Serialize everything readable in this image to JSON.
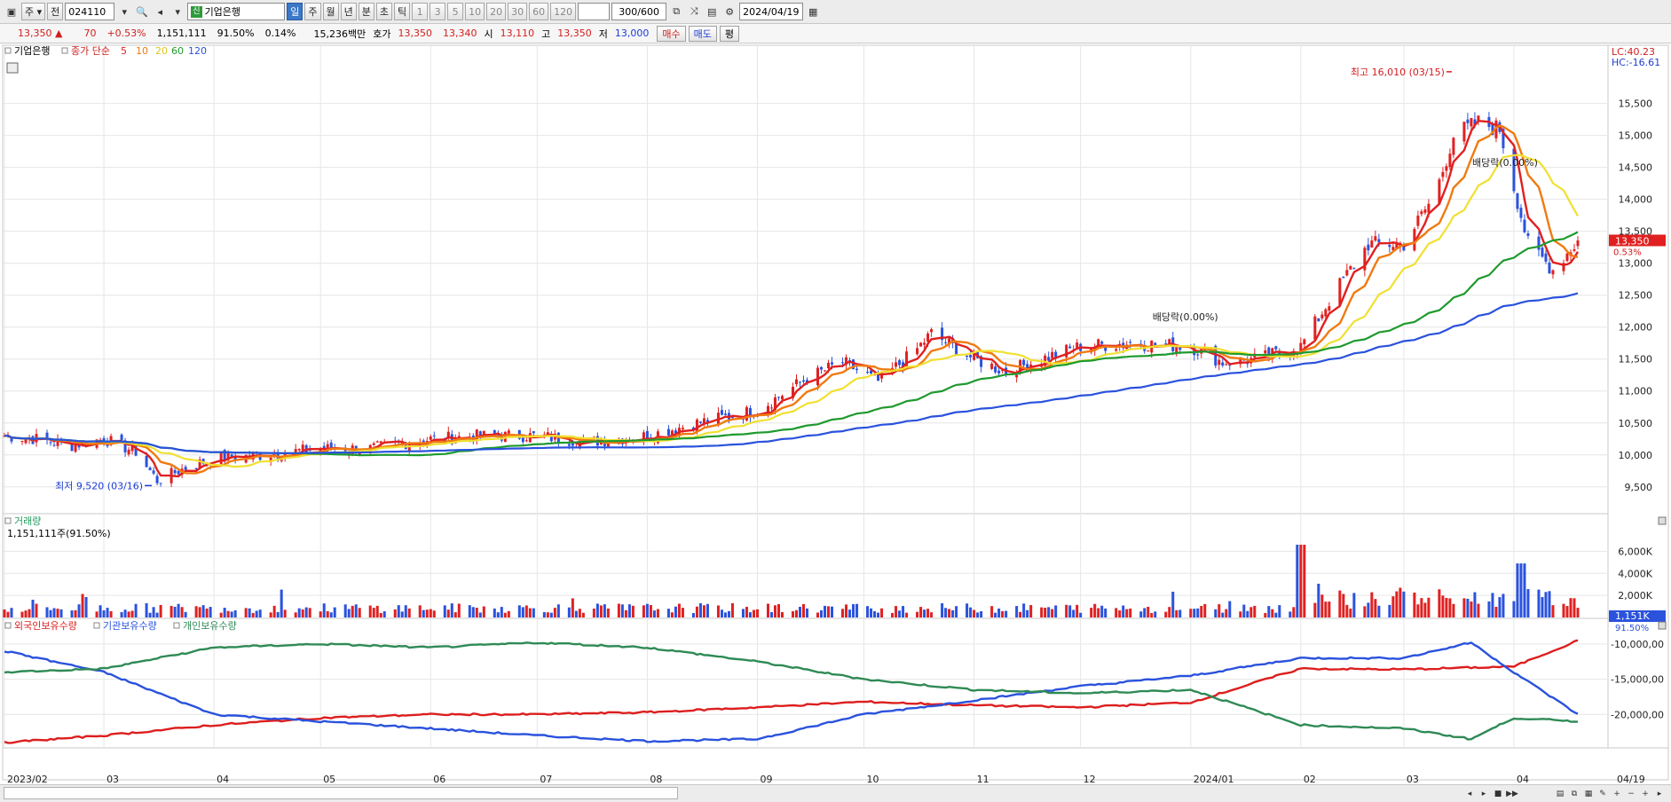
{
  "toolbar": {
    "period_label": "주",
    "mode_label": "전",
    "code": "024110",
    "stock_name": "기업은행",
    "stock_badge": "신",
    "periods": [
      "일",
      "주",
      "월",
      "년",
      "분",
      "초",
      "틱"
    ],
    "active_period": "일",
    "intervals": [
      "1",
      "3",
      "5",
      "10",
      "20",
      "30",
      "60",
      "120"
    ],
    "count": "300/600",
    "date": "2024/04/19"
  },
  "quote": {
    "price": "13,350 ▲",
    "change": "70",
    "change_pct": "+0.53%",
    "volume": "1,151,111",
    "vol_ratio": "91.50%",
    "turnover": "0.14%",
    "amount": "15,236백만",
    "ask_label": "호가",
    "ask1": "13,350",
    "ask2": "13,340",
    "open_label": "시",
    "open": "13,110",
    "high_label": "고",
    "high": "13,350",
    "low_label": "저",
    "low": "13,000",
    "buy_label": "매수",
    "sell_label": "매도",
    "eval_label": "평"
  },
  "chart_data": {
    "type": "candlestick",
    "price_panel": {
      "legend": {
        "name": "기업은행",
        "ma_label": "종가 단순",
        "ma_periods": [
          "5",
          "10",
          "20",
          "60",
          "120"
        ]
      },
      "ma_colors": [
        "#e02020",
        "#f07a10",
        "#f0e030",
        "#1f9a2e",
        "#2a52dd"
      ],
      "y_ticks": [
        9500,
        10000,
        10500,
        11000,
        11500,
        12000,
        12500,
        13000,
        13500,
        14000,
        14500,
        15000,
        15500
      ],
      "y_range": [
        9150,
        16300
      ],
      "price_labels": {
        "LC": "LC:40.23",
        "HC": "HC:-16.61",
        "current": "13,350",
        "current_pct": "0.53%"
      },
      "annotations": [
        {
          "text": "최고 16,010 (03/15)",
          "value": 16010,
          "date": "2024/03/15"
        },
        {
          "text": "최저 9,520 (03/16)",
          "value": 9520,
          "date": "2023/03/16"
        },
        {
          "text": "배당락(0.00%)",
          "date": "2023/12/28"
        },
        {
          "text": "배당락(0.00%)",
          "date": "2024/04/02"
        }
      ],
      "close_keypoints": [
        [
          "2023/02/01",
          10300
        ],
        [
          "2023/02/10",
          10250
        ],
        [
          "2023/02/20",
          10150
        ],
        [
          "2023/03/01",
          10250
        ],
        [
          "2023/03/10",
          10050
        ],
        [
          "2023/03/16",
          9600
        ],
        [
          "2023/03/24",
          9800
        ],
        [
          "2023/04/01",
          9950
        ],
        [
          "2023/04/15",
          10000
        ],
        [
          "2023/05/01",
          10100
        ],
        [
          "2023/05/15",
          10100
        ],
        [
          "2023/06/01",
          10250
        ],
        [
          "2023/06/15",
          10300
        ],
        [
          "2023/07/01",
          10300
        ],
        [
          "2023/07/15",
          10200
        ],
        [
          "2023/08/01",
          10300
        ],
        [
          "2023/08/15",
          10500
        ],
        [
          "2023/09/01",
          10700
        ],
        [
          "2023/09/15",
          11200
        ],
        [
          "2023/09/25",
          11450
        ],
        [
          "2023/10/05",
          11150
        ],
        [
          "2023/10/15",
          11600
        ],
        [
          "2023/10/20",
          11900
        ],
        [
          "2023/11/01",
          11500
        ],
        [
          "2023/11/10",
          11300
        ],
        [
          "2023/11/20",
          11500
        ],
        [
          "2023/12/01",
          11700
        ],
        [
          "2023/12/15",
          11750
        ],
        [
          "2024/01/01",
          11700
        ],
        [
          "2024/01/10",
          11450
        ],
        [
          "2024/01/20",
          11500
        ],
        [
          "2024/02/01",
          11700
        ],
        [
          "2024/02/10",
          12500
        ],
        [
          "2024/02/20",
          13300
        ],
        [
          "2024/03/01",
          13300
        ],
        [
          "2024/03/10",
          14100
        ],
        [
          "2024/03/15",
          15000
        ],
        [
          "2024/03/22",
          15200
        ],
        [
          "2024/03/28",
          15100
        ],
        [
          "2024/04/05",
          13300
        ],
        [
          "2024/04/12",
          12900
        ],
        [
          "2024/04/19",
          13350
        ]
      ]
    },
    "volume_panel": {
      "title": "거래량",
      "subtitle": "1,151,111주(91.50%)",
      "y_ticks": [
        "2,000K",
        "4,000K",
        "6,000K"
      ],
      "y_range": [
        0,
        7000
      ],
      "current_label": "1,151K",
      "current_pct": "91.50%",
      "note": "volume in thousands of shares"
    },
    "holdings_panel": {
      "series_names": [
        "외국인보유수량",
        "기관보유수량",
        "개인보유수량"
      ],
      "series_colors": [
        "#dd1e1e",
        "#2a52dd",
        "#2f8a55"
      ],
      "y_ticks": [
        "-10,000,00",
        "-15,000,00",
        "-20,000,00"
      ],
      "y_range": [
        -24500,
        -8500
      ],
      "foreign_keypoints": [
        [
          "2023/02/01",
          -24000
        ],
        [
          "2023/03/01",
          -23000
        ],
        [
          "2023/04/01",
          -21500
        ],
        [
          "2023/05/01",
          -20500
        ],
        [
          "2023/06/01",
          -20000
        ],
        [
          "2023/07/01",
          -20000
        ],
        [
          "2023/08/01",
          -19700
        ],
        [
          "2023/09/01",
          -19000
        ],
        [
          "2023/10/01",
          -18200
        ],
        [
          "2023/11/01",
          -18700
        ],
        [
          "2023/12/01",
          -19000
        ],
        [
          "2024/01/01",
          -18300
        ],
        [
          "2024/02/01",
          -13500
        ],
        [
          "2024/03/01",
          -13600
        ],
        [
          "2024/04/01",
          -13200
        ],
        [
          "2024/04/19",
          -9500
        ]
      ],
      "institution_keypoints": [
        [
          "2023/02/01",
          -11000
        ],
        [
          "2023/03/01",
          -14000
        ],
        [
          "2023/04/01",
          -20000
        ],
        [
          "2023/05/01",
          -21000
        ],
        [
          "2023/06/01",
          -22000
        ],
        [
          "2023/07/01",
          -23000
        ],
        [
          "2023/08/01",
          -23800
        ],
        [
          "2023/09/01",
          -23500
        ],
        [
          "2023/10/01",
          -20000
        ],
        [
          "2023/11/01",
          -18000
        ],
        [
          "2023/12/01",
          -16000
        ],
        [
          "2024/01/01",
          -14500
        ],
        [
          "2024/02/01",
          -12000
        ],
        [
          "2024/03/01",
          -12000
        ],
        [
          "2024/03/20",
          -9800
        ],
        [
          "2024/04/01",
          -14000
        ],
        [
          "2024/04/19",
          -20000
        ]
      ],
      "individual_keypoints": [
        [
          "2023/02/01",
          -14000
        ],
        [
          "2023/03/01",
          -13500
        ],
        [
          "2023/04/01",
          -10500
        ],
        [
          "2023/05/01",
          -10000
        ],
        [
          "2023/06/01",
          -10500
        ],
        [
          "2023/07/01",
          -9800
        ],
        [
          "2023/08/01",
          -10500
        ],
        [
          "2023/09/01",
          -12500
        ],
        [
          "2023/10/01",
          -15000
        ],
        [
          "2023/11/01",
          -16500
        ],
        [
          "2023/12/01",
          -17000
        ],
        [
          "2024/01/01",
          -16500
        ],
        [
          "2024/02/01",
          -21500
        ],
        [
          "2024/03/01",
          -22000
        ],
        [
          "2024/03/20",
          -23500
        ],
        [
          "2024/04/01",
          -20500
        ],
        [
          "2024/04/19",
          -21000
        ]
      ]
    },
    "x_axis": {
      "labels": [
        "2023/02",
        "03",
        "04",
        "05",
        "06",
        "07",
        "08",
        "09",
        "10",
        "11",
        "12",
        "2024/01",
        "02",
        "03",
        "04"
      ],
      "end_label": "04/19",
      "start": "2023/02/01",
      "end": "2024/04/19"
    }
  }
}
